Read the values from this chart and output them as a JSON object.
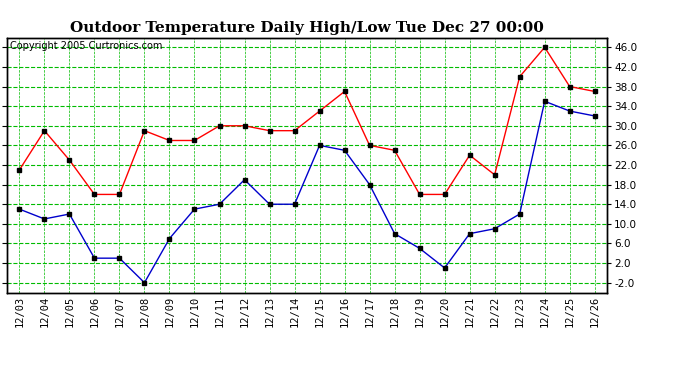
{
  "title": "Outdoor Temperature Daily High/Low Tue Dec 27 00:00",
  "copyright": "Copyright 2005 Curtronics.com",
  "dates": [
    "12/03",
    "12/04",
    "12/05",
    "12/06",
    "12/07",
    "12/08",
    "12/09",
    "12/10",
    "12/11",
    "12/12",
    "12/13",
    "12/14",
    "12/15",
    "12/16",
    "12/17",
    "12/18",
    "12/19",
    "12/20",
    "12/21",
    "12/22",
    "12/23",
    "12/24",
    "12/25",
    "12/26"
  ],
  "high": [
    21,
    29,
    23,
    16,
    16,
    29,
    27,
    27,
    30,
    30,
    29,
    29,
    33,
    37,
    26,
    25,
    16,
    16,
    24,
    20,
    40,
    46,
    38,
    37
  ],
  "low": [
    13,
    11,
    12,
    3,
    3,
    -2,
    7,
    13,
    14,
    19,
    14,
    14,
    26,
    25,
    18,
    8,
    5,
    1,
    8,
    9,
    12,
    35,
    33,
    32
  ],
  "high_color": "#ff0000",
  "low_color": "#0000cc",
  "bg_color": "#ffffff",
  "grid_color": "#00bb00",
  "plot_bg": "#ffffff",
  "ylim": [
    -4,
    48
  ],
  "yticks": [
    -2.0,
    2.0,
    6.0,
    10.0,
    14.0,
    18.0,
    22.0,
    26.0,
    30.0,
    34.0,
    38.0,
    42.0,
    46.0
  ],
  "title_fontsize": 11,
  "axis_fontsize": 7.5,
  "copyright_fontsize": 7
}
